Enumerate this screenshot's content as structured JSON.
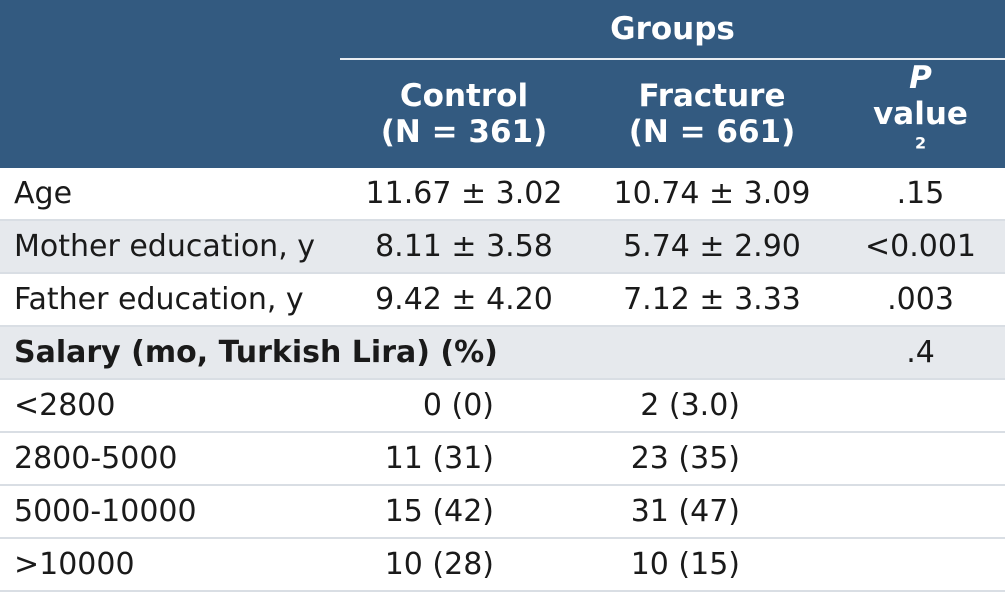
{
  "header": {
    "groups": "Groups",
    "control_name": "Control",
    "control_n": "(N = 361)",
    "fracture_name": "Fracture",
    "fracture_n": "(N = 661)",
    "p_letter": "P",
    "p_word": "value",
    "p_footnote": "2"
  },
  "rows": [
    {
      "label": "Age",
      "control": "11.67 ± 3.02",
      "fracture": "10.74 ± 3.09",
      "p": ".15"
    },
    {
      "label": "Mother education, y",
      "control": "8.11 ± 3.58",
      "fracture": "5.74 ± 2.90",
      "p": "<0.001"
    },
    {
      "label": "Father education, y",
      "control": "9.42 ± 4.20",
      "fracture": "7.12 ± 3.33",
      "p": ".003"
    }
  ],
  "salary": {
    "label": "Salary (mo, Turkish Lira) (%)",
    "p": ".4",
    "categories": [
      {
        "label": "<2800",
        "control": "0 (0)",
        "fracture": "2 (3.0)"
      },
      {
        "label": "2800-5000",
        "control": "11 (31)",
        "fracture": "23 (35)"
      },
      {
        "label": "5000-10000",
        "control": "15 (42)",
        "fracture": "31 (47)"
      },
      {
        "label": ">10000",
        "control": "10 (28)",
        "fracture": "10 (15)"
      }
    ]
  }
}
